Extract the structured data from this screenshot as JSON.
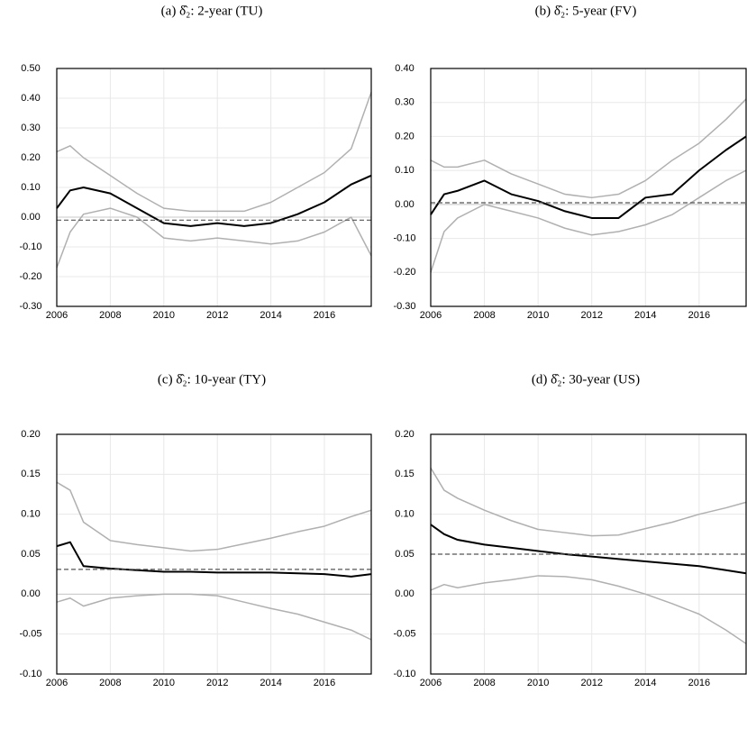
{
  "chart_data": [
    {
      "type": "line",
      "title": "(a) δ̂₂: 2-year (TU)",
      "x": [
        2006,
        2006.5,
        2007,
        2008,
        2009,
        2010,
        2011,
        2012,
        2013,
        2014,
        2015,
        2016,
        2017,
        2017.75
      ],
      "xlim": [
        2006,
        2017.75
      ],
      "xticks": [
        2006,
        2008,
        2010,
        2012,
        2014,
        2016
      ],
      "ylim": [
        -0.3,
        0.5
      ],
      "yticks": [
        {
          "value": -0.3,
          "label": "-0.30"
        },
        {
          "value": -0.2,
          "label": "-0.20"
        },
        {
          "value": -0.1,
          "label": "-0.10"
        },
        {
          "value": 0,
          "label": "0.00"
        },
        {
          "value": 0.1,
          "label": "0.10"
        },
        {
          "value": 0.2,
          "label": "0.20"
        },
        {
          "value": 0.3,
          "label": "0.30"
        },
        {
          "value": 0.4,
          "label": "0.40"
        },
        {
          "value": 0.5,
          "label": "0.50"
        }
      ],
      "grid": true,
      "reference_line": -0.01,
      "series": [
        {
          "color": "#b0b0b0",
          "values": [
            0.22,
            0.24,
            0.2,
            0.14,
            0.08,
            0.03,
            0.02,
            0.02,
            0.02,
            0.05,
            0.1,
            0.15,
            0.23,
            0.42
          ]
        },
        {
          "color": "#b0b0b0",
          "values": [
            -0.17,
            -0.05,
            0.01,
            0.03,
            0.0,
            -0.07,
            -0.08,
            -0.07,
            -0.08,
            -0.09,
            -0.08,
            -0.05,
            0.0,
            -0.13
          ]
        },
        {
          "color": "#000000",
          "values": [
            0.03,
            0.09,
            0.1,
            0.08,
            0.03,
            -0.02,
            -0.03,
            -0.02,
            -0.03,
            -0.02,
            0.01,
            0.05,
            0.11,
            0.14
          ]
        }
      ]
    },
    {
      "type": "line",
      "title": "(b) δ̂₂: 5-year (FV)",
      "x": [
        2006,
        2006.5,
        2007,
        2008,
        2009,
        2010,
        2011,
        2012,
        2013,
        2014,
        2015,
        2016,
        2017,
        2017.75
      ],
      "xlim": [
        2006,
        2017.75
      ],
      "xticks": [
        2006,
        2008,
        2010,
        2012,
        2014,
        2016
      ],
      "ylim": [
        -0.3,
        0.4
      ],
      "yticks": [
        {
          "value": -0.3,
          "label": "-0.30"
        },
        {
          "value": -0.2,
          "label": "-0.20"
        },
        {
          "value": -0.1,
          "label": "-0.10"
        },
        {
          "value": 0,
          "label": "0.00"
        },
        {
          "value": 0.1,
          "label": "0.10"
        },
        {
          "value": 0.2,
          "label": "0.20"
        },
        {
          "value": 0.3,
          "label": "0.30"
        },
        {
          "value": 0.4,
          "label": "0.40"
        }
      ],
      "grid": true,
      "reference_line": 0.005,
      "series": [
        {
          "color": "#b0b0b0",
          "values": [
            0.13,
            0.11,
            0.11,
            0.13,
            0.09,
            0.06,
            0.03,
            0.02,
            0.03,
            0.07,
            0.13,
            0.18,
            0.25,
            0.31
          ]
        },
        {
          "color": "#b0b0b0",
          "values": [
            -0.2,
            -0.08,
            -0.04,
            0.0,
            -0.02,
            -0.04,
            -0.07,
            -0.09,
            -0.08,
            -0.06,
            -0.03,
            0.02,
            0.07,
            0.1
          ]
        },
        {
          "color": "#000000",
          "values": [
            -0.03,
            0.03,
            0.04,
            0.07,
            0.03,
            0.01,
            -0.02,
            -0.04,
            -0.04,
            0.02,
            0.03,
            0.1,
            0.16,
            0.2
          ]
        }
      ]
    },
    {
      "type": "line",
      "title": "(c) δ̂₂: 10-year (TY)",
      "x": [
        2006,
        2006.5,
        2007,
        2008,
        2009,
        2010,
        2011,
        2012,
        2013,
        2014,
        2015,
        2016,
        2017,
        2017.75
      ],
      "xlim": [
        2006,
        2017.75
      ],
      "xticks": [
        2006,
        2008,
        2010,
        2012,
        2014,
        2016
      ],
      "ylim": [
        -0.1,
        0.2
      ],
      "yticks": [
        {
          "value": -0.1,
          "label": "-0.10"
        },
        {
          "value": -0.05,
          "label": "-0.05"
        },
        {
          "value": 0,
          "label": "0.00"
        },
        {
          "value": 0.05,
          "label": "0.05"
        },
        {
          "value": 0.1,
          "label": "0.10"
        },
        {
          "value": 0.15,
          "label": "0.15"
        },
        {
          "value": 0.2,
          "label": "0.20"
        }
      ],
      "grid": true,
      "reference_line": 0.031,
      "series": [
        {
          "color": "#b0b0b0",
          "values": [
            0.14,
            0.13,
            0.09,
            0.067,
            0.062,
            0.058,
            0.054,
            0.056,
            0.063,
            0.07,
            0.078,
            0.085,
            0.097,
            0.105
          ]
        },
        {
          "color": "#b0b0b0",
          "values": [
            -0.01,
            -0.005,
            -0.015,
            -0.005,
            -0.002,
            0.0,
            0.0,
            -0.002,
            -0.01,
            -0.018,
            -0.025,
            -0.035,
            -0.045,
            -0.057
          ]
        },
        {
          "color": "#000000",
          "values": [
            0.06,
            0.065,
            0.035,
            0.032,
            0.03,
            0.028,
            0.028,
            0.027,
            0.027,
            0.027,
            0.026,
            0.025,
            0.022,
            0.025
          ]
        }
      ]
    },
    {
      "type": "line",
      "title": "(d) δ̂₂: 30-year (US)",
      "x": [
        2006,
        2006.5,
        2007,
        2008,
        2009,
        2010,
        2011,
        2012,
        2013,
        2014,
        2015,
        2016,
        2017,
        2017.75
      ],
      "xlim": [
        2006,
        2017.75
      ],
      "xticks": [
        2006,
        2008,
        2010,
        2012,
        2014,
        2016
      ],
      "ylim": [
        -0.1,
        0.2
      ],
      "yticks": [
        {
          "value": -0.1,
          "label": "-0.10"
        },
        {
          "value": -0.05,
          "label": "-0.05"
        },
        {
          "value": 0,
          "label": "0.00"
        },
        {
          "value": 0.05,
          "label": "0.05"
        },
        {
          "value": 0.1,
          "label": "0.10"
        },
        {
          "value": 0.15,
          "label": "0.15"
        },
        {
          "value": 0.2,
          "label": "0.20"
        }
      ],
      "grid": true,
      "reference_line": 0.05,
      "series": [
        {
          "color": "#b0b0b0",
          "values": [
            0.158,
            0.13,
            0.12,
            0.105,
            0.092,
            0.081,
            0.077,
            0.073,
            0.074,
            0.082,
            0.09,
            0.1,
            0.108,
            0.115
          ]
        },
        {
          "color": "#b0b0b0",
          "values": [
            0.005,
            0.012,
            0.008,
            0.014,
            0.018,
            0.023,
            0.022,
            0.018,
            0.01,
            0.0,
            -0.012,
            -0.025,
            -0.045,
            -0.062
          ]
        },
        {
          "color": "#000000",
          "values": [
            0.087,
            0.075,
            0.068,
            0.062,
            0.058,
            0.054,
            0.05,
            0.047,
            0.044,
            0.041,
            0.038,
            0.035,
            0.03,
            0.026
          ]
        }
      ]
    }
  ]
}
